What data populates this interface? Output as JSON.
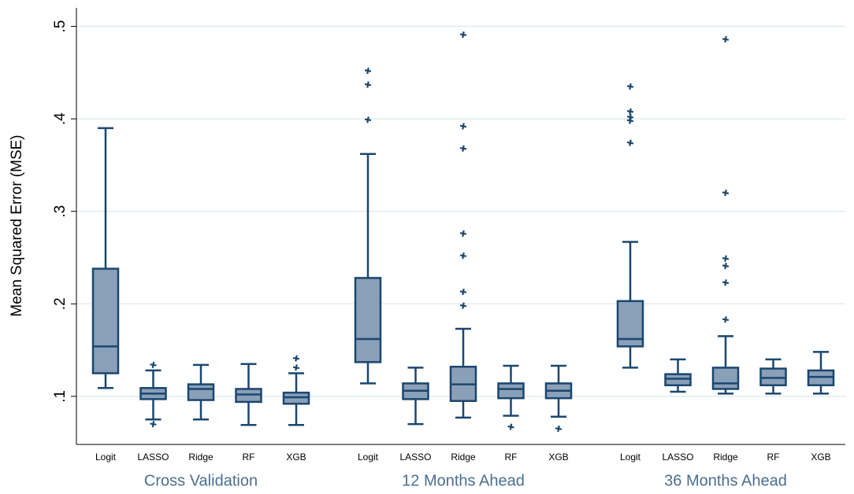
{
  "chart_data": {
    "type": "box",
    "y_label": "Mean Squared Error (MSE)",
    "ylim": [
      0.048,
      0.52
    ],
    "yticks": [
      {
        "value": 0.1,
        "label": ".1"
      },
      {
        "value": 0.2,
        "label": ".2"
      },
      {
        "value": 0.3,
        "label": ".3"
      },
      {
        "value": 0.4,
        "label": ".4"
      },
      {
        "value": 0.5,
        "label": ".5"
      }
    ],
    "grid": true,
    "box_color": "#8a9fb8",
    "line_color": "#1a476f",
    "groups": [
      {
        "name": "Cross Validation",
        "boxes": [
          {
            "category": "Logit",
            "whislo": 0.109,
            "q1": 0.125,
            "med": 0.154,
            "q3": 0.238,
            "whishi": 0.39,
            "fliers": []
          },
          {
            "category": "LASSO",
            "whislo": 0.075,
            "q1": 0.097,
            "med": 0.103,
            "q3": 0.109,
            "whishi": 0.128,
            "fliers": [
              0.134,
              0.07
            ]
          },
          {
            "category": "Ridge",
            "whislo": 0.075,
            "q1": 0.096,
            "med": 0.108,
            "q3": 0.113,
            "whishi": 0.134,
            "fliers": []
          },
          {
            "category": "RF",
            "whislo": 0.069,
            "q1": 0.094,
            "med": 0.102,
            "q3": 0.108,
            "whishi": 0.135,
            "fliers": []
          },
          {
            "category": "XGB",
            "whislo": 0.069,
            "q1": 0.092,
            "med": 0.099,
            "q3": 0.104,
            "whishi": 0.125,
            "fliers": [
              0.141,
              0.131
            ]
          }
        ]
      },
      {
        "name": "12 Months Ahead",
        "boxes": [
          {
            "category": "Logit",
            "whislo": 0.114,
            "q1": 0.137,
            "med": 0.162,
            "q3": 0.228,
            "whishi": 0.362,
            "fliers": [
              0.452,
              0.437,
              0.399
            ]
          },
          {
            "category": "LASSO",
            "whislo": 0.07,
            "q1": 0.097,
            "med": 0.106,
            "q3": 0.114,
            "whishi": 0.131,
            "fliers": []
          },
          {
            "category": "Ridge",
            "whislo": 0.077,
            "q1": 0.095,
            "med": 0.113,
            "q3": 0.132,
            "whishi": 0.173,
            "fliers": [
              0.491,
              0.392,
              0.368,
              0.276,
              0.252,
              0.213,
              0.198
            ]
          },
          {
            "category": "RF",
            "whislo": 0.079,
            "q1": 0.098,
            "med": 0.108,
            "q3": 0.114,
            "whishi": 0.133,
            "fliers": [
              0.067
            ]
          },
          {
            "category": "XGB",
            "whislo": 0.078,
            "q1": 0.098,
            "med": 0.106,
            "q3": 0.114,
            "whishi": 0.133,
            "fliers": [
              0.065
            ]
          }
        ]
      },
      {
        "name": "36 Months Ahead",
        "boxes": [
          {
            "category": "Logit",
            "whislo": 0.131,
            "q1": 0.154,
            "med": 0.162,
            "q3": 0.203,
            "whishi": 0.267,
            "fliers": [
              0.435,
              0.408,
              0.402,
              0.398,
              0.374
            ]
          },
          {
            "category": "LASSO",
            "whislo": 0.105,
            "q1": 0.112,
            "med": 0.119,
            "q3": 0.124,
            "whishi": 0.14,
            "fliers": []
          },
          {
            "category": "Ridge",
            "whislo": 0.103,
            "q1": 0.108,
            "med": 0.114,
            "q3": 0.131,
            "whishi": 0.165,
            "fliers": [
              0.486,
              0.32,
              0.249,
              0.241,
              0.223,
              0.183
            ]
          },
          {
            "category": "RF",
            "whislo": 0.103,
            "q1": 0.112,
            "med": 0.12,
            "q3": 0.13,
            "whishi": 0.14,
            "fliers": []
          },
          {
            "category": "XGB",
            "whislo": 0.103,
            "q1": 0.112,
            "med": 0.121,
            "q3": 0.128,
            "whishi": 0.148,
            "fliers": []
          }
        ]
      }
    ]
  }
}
